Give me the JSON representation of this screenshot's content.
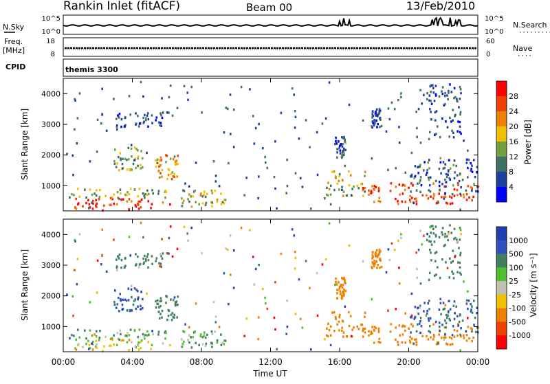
{
  "header": {
    "station": "Rankin Inlet (fitACF)",
    "beam": "Beam 00",
    "date": "13/Feb/2010"
  },
  "nsky_panel": {
    "left_label": "N.Sky",
    "left_ticks": [
      "10^5",
      "10^0"
    ],
    "right_ticks": [
      "10^5",
      "10^0"
    ],
    "right_label": "N.Search",
    "right_marker": "·········"
  },
  "freq_panel": {
    "label_top": "Freq.",
    "label_unit": "[MHz]",
    "left_ticks": [
      "18",
      "8"
    ],
    "right_ticks": [
      "60",
      "0"
    ],
    "right_label": "Nave",
    "right_marker": "····"
  },
  "cpid_panel": {
    "label": "CPID",
    "program": "themis 3300"
  },
  "time_axis": {
    "title": "Time UT",
    "ticks": [
      "00:00",
      "04:00",
      "08:00",
      "12:00",
      "16:00",
      "20:00",
      "00:00"
    ]
  },
  "range_axis": {
    "title": "Slant Range [km]",
    "ticks": [
      "1000",
      "2000",
      "3000",
      "4000"
    ]
  },
  "power_colorbar": {
    "title": "Power [dB]",
    "labels": [
      "28",
      "24",
      "20",
      "16",
      "12",
      "8",
      "4"
    ],
    "colors": [
      "#ff0000",
      "#f04000",
      "#f08000",
      "#f0c000",
      "#70a040",
      "#407060",
      "#1f3fa0",
      "#0000ff"
    ]
  },
  "velocity_colorbar": {
    "title": "Velocity [m s⁻¹]",
    "labels": [
      "1000",
      "500",
      "100",
      "25",
      "-25",
      "-100",
      "-500",
      "-1000"
    ],
    "colors": [
      "#2040b0",
      "#3050c0",
      "#408060",
      "#50c030",
      "#c0c0b0",
      "#f0c000",
      "#f08000",
      "#f04000",
      "#ff0000"
    ]
  },
  "chart_data": {
    "type": "heatmap",
    "x_range_hours": [
      0,
      24
    ],
    "y_range_km": [
      180,
      4500
    ],
    "regions": [
      {
        "t0": 0.1,
        "t1": 6.3,
        "r0": 190,
        "r1": 620,
        "power": 28,
        "velocity": -25
      },
      {
        "t0": 0.2,
        "t1": 6.0,
        "r0": 600,
        "r1": 900,
        "power": 14,
        "velocity": 100
      },
      {
        "t0": 2.9,
        "t1": 4.6,
        "r0": 1500,
        "r1": 2300,
        "power": 14,
        "velocity": 800
      },
      {
        "t0": 5.2,
        "t1": 6.6,
        "r0": 1200,
        "r1": 2000,
        "power": 20,
        "velocity": 300
      },
      {
        "t0": 6.8,
        "t1": 9.4,
        "r0": 300,
        "r1": 900,
        "power": 16,
        "velocity": 100
      },
      {
        "t0": 3.0,
        "t1": 5.8,
        "r0": 2900,
        "r1": 3400,
        "power": 6,
        "velocity": 300
      },
      {
        "t0": 15.0,
        "t1": 17.5,
        "r0": 600,
        "r1": 1500,
        "power": 16,
        "velocity": -200
      },
      {
        "t0": 15.7,
        "t1": 16.3,
        "r0": 1900,
        "r1": 2600,
        "power": 8,
        "velocity": -300
      },
      {
        "t0": 17.0,
        "t1": 24.0,
        "r0": 400,
        "r1": 1100,
        "power": 26,
        "velocity": -300
      },
      {
        "t0": 20.0,
        "t1": 24.0,
        "r0": 700,
        "r1": 1900,
        "power": 8,
        "velocity": 500
      },
      {
        "t0": 17.8,
        "t1": 18.4,
        "r0": 2900,
        "r1": 3500,
        "power": 6,
        "velocity": -300
      },
      {
        "t0": 21.0,
        "t1": 23.0,
        "r0": 2500,
        "r1": 4300,
        "power": 6,
        "velocity": 200
      }
    ]
  }
}
